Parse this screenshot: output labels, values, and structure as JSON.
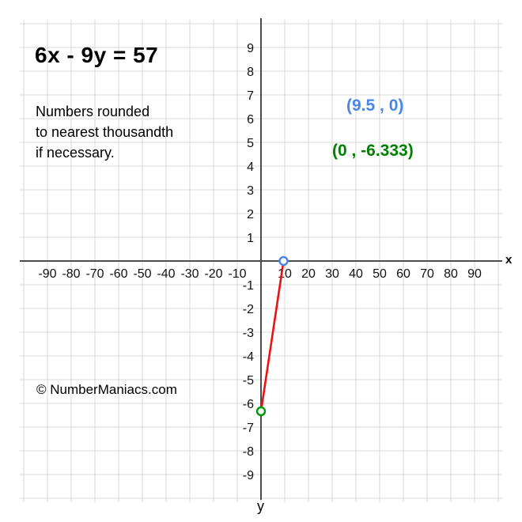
{
  "title": {
    "equation": "6x - 9y = 57"
  },
  "note": {
    "line1": "Numbers rounded",
    "line2": "to nearest thousandth",
    "line3": "if necessary."
  },
  "watermark": "© NumberManiacs.com",
  "chart_data": {
    "type": "line",
    "title": "6x - 9y = 57",
    "equation": "6x - 9y = 57",
    "description": "Red segment joining the x-intercept and y-intercept of the line 6x - 9y = 57 on a grid",
    "grid": true,
    "x_axis": {
      "label": "x",
      "min": -100,
      "max": 100,
      "tick_step": 10,
      "ticks": [
        -90,
        -80,
        -70,
        -60,
        -50,
        -40,
        -30,
        -20,
        -10,
        10,
        20,
        30,
        40,
        50,
        60,
        70,
        80,
        90
      ]
    },
    "y_axis": {
      "label": "y",
      "min": -10,
      "max": 10,
      "tick_step": 1,
      "ticks": [
        9,
        8,
        7,
        6,
        5,
        4,
        3,
        2,
        1,
        -1,
        -2,
        -3,
        -4,
        -5,
        -6,
        -7,
        -8,
        -9
      ]
    },
    "series": [
      {
        "name": "segment",
        "points": [
          [
            9.5,
            0
          ],
          [
            0,
            -6.333
          ]
        ],
        "color": "#ee1111"
      }
    ],
    "points": [
      {
        "name": "x-intercept",
        "x": 9.5,
        "y": 0,
        "label": "(9.5 , 0)",
        "color": "#4a86e8",
        "label_color": "#4a86e8"
      },
      {
        "name": "y-intercept",
        "x": 0,
        "y": -6.333,
        "label": "(0 , -6.333)",
        "color": "#009900",
        "label_color": "#008000"
      }
    ],
    "colors": {
      "grid": "#d9d9d9",
      "axis": "#4d4d4d",
      "tick_text": "#111111",
      "line": "#ee1111",
      "point_fill": "#ffffff"
    }
  }
}
